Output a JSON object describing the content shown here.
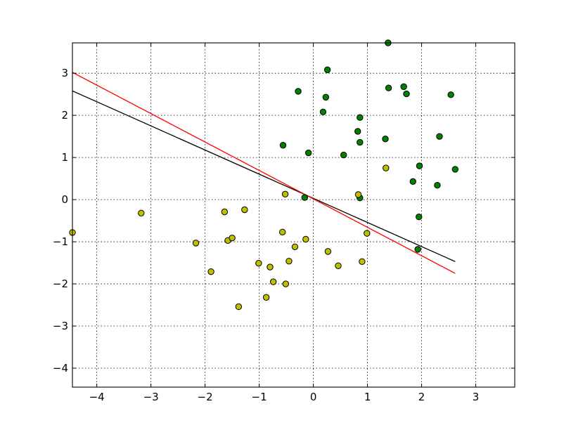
{
  "chart_data": {
    "type": "scatter",
    "xlim": [
      -4.45,
      3.72
    ],
    "ylim": [
      -4.45,
      3.72
    ],
    "xticks": [
      -4,
      -3,
      -2,
      -1,
      0,
      1,
      2,
      3
    ],
    "yticks": [
      -4,
      -3,
      -2,
      -1,
      0,
      1,
      2,
      3
    ],
    "xtick_labels": [
      "−4",
      "−3",
      "−2",
      "−1",
      "0",
      "1",
      "2",
      "3"
    ],
    "ytick_labels": [
      "−4",
      "−3",
      "−2",
      "−1",
      "0",
      "1",
      "2",
      "3"
    ],
    "grid": true,
    "series": [
      {
        "color": "#008000",
        "points": [
          [
            1.38,
            3.72
          ],
          [
            0.26,
            3.08
          ],
          [
            -0.28,
            2.57
          ],
          [
            0.23,
            2.43
          ],
          [
            1.39,
            2.65
          ],
          [
            1.67,
            2.68
          ],
          [
            1.72,
            2.51
          ],
          [
            2.54,
            2.49
          ],
          [
            0.18,
            2.08
          ],
          [
            0.86,
            1.95
          ],
          [
            0.82,
            1.62
          ],
          [
            0.86,
            1.36
          ],
          [
            1.33,
            1.44
          ],
          [
            2.33,
            1.5
          ],
          [
            -0.56,
            1.29
          ],
          [
            -0.09,
            1.11
          ],
          [
            0.56,
            1.06
          ],
          [
            1.96,
            0.8
          ],
          [
            2.62,
            0.72
          ],
          [
            1.84,
            0.43
          ],
          [
            2.29,
            0.34
          ],
          [
            -0.16,
            0.05
          ],
          [
            0.86,
            0.04
          ],
          [
            1.95,
            -0.41
          ],
          [
            1.93,
            -1.18
          ]
        ]
      },
      {
        "color": "#bfbf00",
        "points": [
          [
            -4.45,
            -0.78
          ],
          [
            -3.18,
            -0.32
          ],
          [
            -1.64,
            -0.29
          ],
          [
            -1.27,
            -0.24
          ],
          [
            -0.52,
            0.13
          ],
          [
            0.83,
            0.12
          ],
          [
            1.34,
            0.75
          ],
          [
            -2.17,
            -1.03
          ],
          [
            -1.58,
            -0.97
          ],
          [
            -1.5,
            -0.91
          ],
          [
            -0.57,
            -0.77
          ],
          [
            -0.14,
            -0.94
          ],
          [
            -0.34,
            -1.12
          ],
          [
            0.99,
            -0.8
          ],
          [
            0.27,
            -1.23
          ],
          [
            -1.89,
            -1.71
          ],
          [
            -1.01,
            -1.51
          ],
          [
            -0.8,
            -1.6
          ],
          [
            -0.45,
            -1.46
          ],
          [
            0.46,
            -1.57
          ],
          [
            0.9,
            -1.47
          ],
          [
            -0.74,
            -1.95
          ],
          [
            -0.51,
            -2.0
          ],
          [
            -0.87,
            -2.32
          ],
          [
            -1.38,
            -2.54
          ]
        ]
      }
    ],
    "lines": [
      {
        "color": "#000000",
        "x": [
          -4.45,
          2.62
        ],
        "y": [
          2.58,
          -1.47
        ]
      },
      {
        "color": "#ff0000",
        "x": [
          -4.45,
          2.62
        ],
        "y": [
          3.02,
          -1.75
        ]
      }
    ]
  }
}
